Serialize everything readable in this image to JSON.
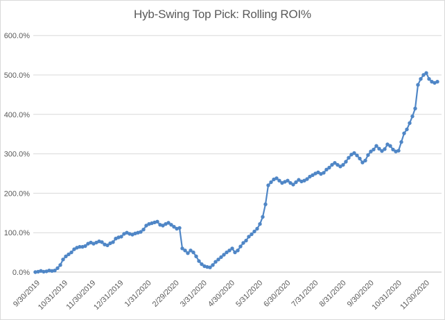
{
  "window": {
    "background_color": "#ffffff",
    "border_color": "#d9d9d9"
  },
  "chart_data": {
    "type": "line",
    "title": "Hyb-Swing Top Pick: Rolling ROI%",
    "xlabel": "",
    "ylabel": "",
    "legend": "none",
    "grid": true,
    "grid_color": "#d9d9d9",
    "axis_line_color": "#bfbfbf",
    "text_color": "#595959",
    "y_axis": {
      "min_pct": 0,
      "max_pct": 600,
      "step_pct": 100,
      "tick_labels": [
        "0.0%",
        "100.0%",
        "200.0%",
        "300.0%",
        "400.0%",
        "500.0%",
        "600.0%"
      ]
    },
    "x_axis": {
      "tick_labels": [
        "9/30/2019",
        "10/31/2019",
        "11/30/2019",
        "12/31/2019",
        "1/31/2020",
        "2/29/2020",
        "3/31/2020",
        "4/30/2020",
        "5/31/2020",
        "6/30/2020",
        "7/31/2020",
        "8/31/2020",
        "9/30/2020",
        "10/31/2020",
        "11/30/2020"
      ],
      "label_rotation_deg": 45,
      "note": "daily rolling ROI series, points uniformly spaced from 9/30/2019 to 11/30/2020"
    },
    "series": [
      {
        "name": "Rolling ROI%",
        "color": "#4f86c6",
        "marker": "circle",
        "values_pct": [
          0,
          1,
          3,
          1,
          2,
          4,
          3,
          4,
          10,
          18,
          32,
          40,
          45,
          50,
          58,
          62,
          64,
          64,
          66,
          72,
          75,
          72,
          75,
          78,
          76,
          70,
          68,
          73,
          76,
          85,
          88,
          90,
          97,
          100,
          97,
          95,
          98,
          100,
          102,
          108,
          118,
          122,
          124,
          126,
          128,
          120,
          118,
          122,
          125,
          120,
          115,
          110,
          112,
          60,
          55,
          48,
          55,
          50,
          40,
          28,
          20,
          15,
          13,
          12,
          18,
          26,
          32,
          38,
          44,
          50,
          55,
          60,
          50,
          55,
          65,
          74,
          80,
          90,
          96,
          103,
          110,
          122,
          140,
          172,
          220,
          228,
          235,
          238,
          232,
          226,
          229,
          232,
          226,
          222,
          228,
          234,
          230,
          232,
          236,
          242,
          246,
          250,
          253,
          249,
          252,
          260,
          265,
          272,
          277,
          272,
          268,
          272,
          280,
          290,
          298,
          302,
          296,
          288,
          278,
          283,
          297,
          306,
          311,
          320,
          313,
          307,
          312,
          324,
          320,
          311,
          306,
          308,
          330,
          352,
          362,
          378,
          395,
          415,
          475,
          490,
          500,
          505,
          490,
          483,
          480,
          483
        ]
      }
    ]
  }
}
